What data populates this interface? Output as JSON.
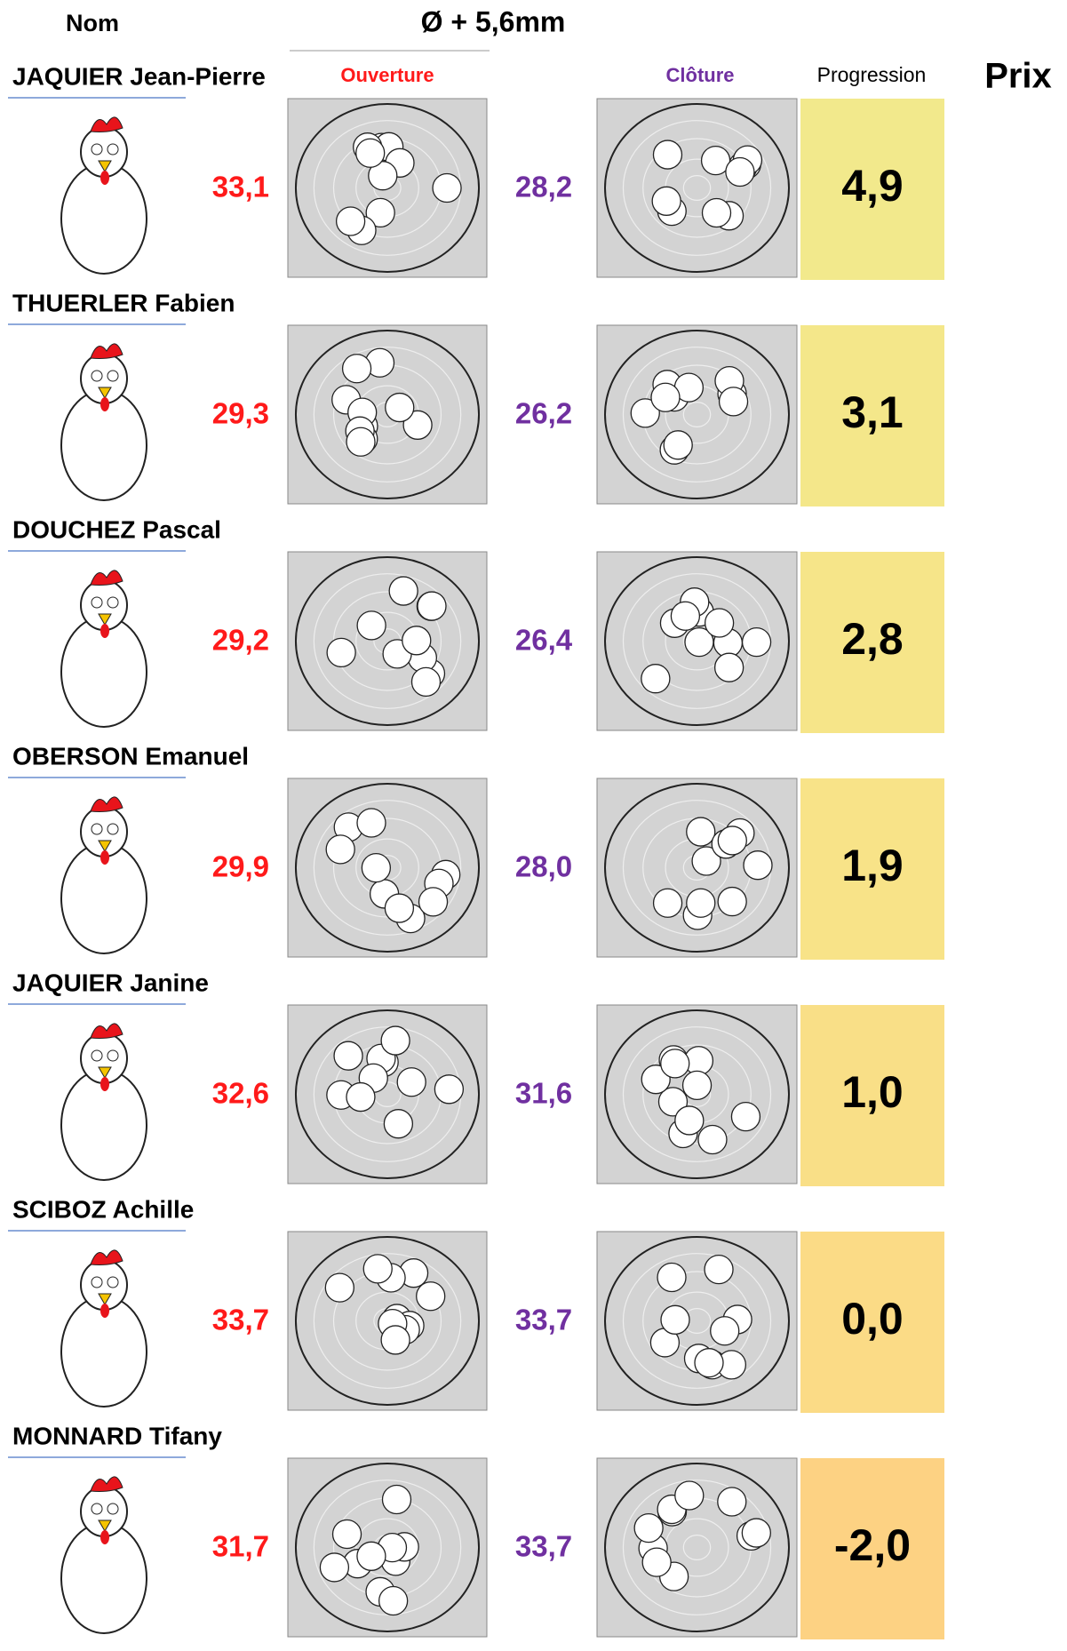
{
  "header": {
    "name": "Nom",
    "diameter": "Ø + 5,6mm",
    "opening": "Ouverture",
    "closing": "Clôture",
    "progression": "Progression",
    "prize": "Prix"
  },
  "rows": [
    {
      "name": "JAQUIER Jean-Pierre",
      "opening": "33,1",
      "closing": "28,2",
      "progression": "4,9",
      "color": "#f2e98c"
    },
    {
      "name": "THUERLER Fabien",
      "opening": "29,3",
      "closing": "26,2",
      "progression": "3,1",
      "color": "#f4e78a"
    },
    {
      "name": "DOUCHEZ Pascal",
      "opening": "29,2",
      "closing": "26,4",
      "progression": "2,8",
      "color": "#f6e589"
    },
    {
      "name": "OBERSON Emanuel",
      "opening": "29,9",
      "closing": "28,0",
      "progression": "1,9",
      "color": "#f8e388"
    },
    {
      "name": "JAQUIER Janine",
      "opening": "32,6",
      "closing": "31,6",
      "progression": "1,0",
      "color": "#f9df87"
    },
    {
      "name": "SCIBOZ Achille",
      "opening": "33,7",
      "closing": "33,7",
      "progression": "0,0",
      "color": "#fbdb86"
    },
    {
      "name": "MONNARD Tifany",
      "opening": "31,7",
      "closing": "33,7",
      "progression": "-2,0",
      "color": "#fdd283"
    }
  ]
}
